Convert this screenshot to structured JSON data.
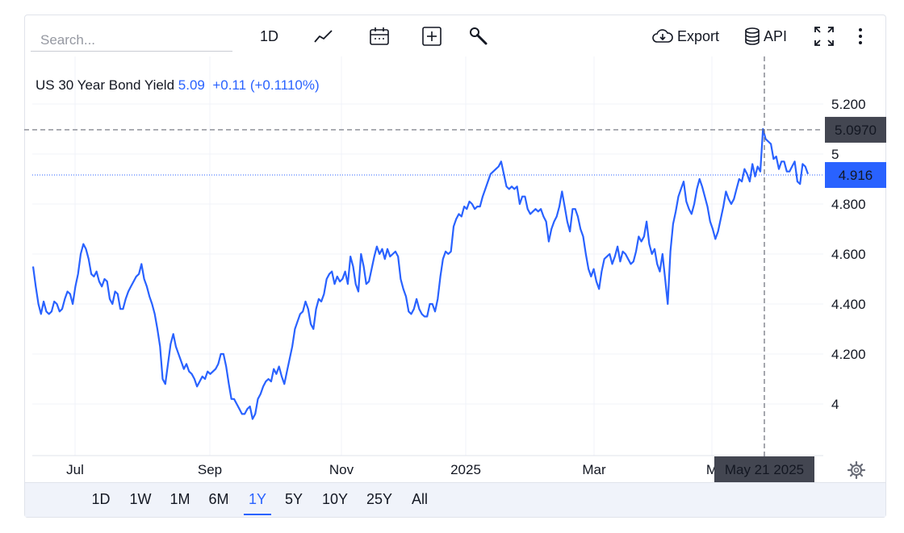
{
  "search": {
    "placeholder": "Search..."
  },
  "toolbar": {
    "interval_label": "1D",
    "chart_type_icon": "line-chart-icon",
    "calendar_icon": "calendar-icon",
    "compare_icon": "plus-square-icon",
    "tools_icon": "wrench-icon",
    "export_label": "Export",
    "api_label": "API",
    "fullscreen_icon": "fullscreen-icon",
    "more_icon": "kebab-menu-icon"
  },
  "legend": {
    "name": "US 30 Year Bond Yield",
    "last": "5.09",
    "change": "+0.11",
    "change_pct": "(+0.1110%)"
  },
  "crosshair": {
    "price_label": "5.0970",
    "date_label": "May 21 2025"
  },
  "last_price_label": "4.916",
  "range_buttons": [
    "1D",
    "1W",
    "1M",
    "6M",
    "1Y",
    "5Y",
    "10Y",
    "25Y",
    "All"
  ],
  "active_range": "1Y",
  "settings_icon": "gear-icon",
  "colors": {
    "line": "#2962ff",
    "label_dark": "#434651",
    "accent": "#2962ff",
    "grid": "#f0f3fa"
  },
  "chart_data": {
    "type": "line",
    "title": "US 30 Year Bond Yield",
    "xlabel": "",
    "ylabel": "",
    "x_tick_labels": [
      "Jul",
      "Sep",
      "Nov",
      "2025",
      "Mar",
      "M"
    ],
    "y_tick_labels": [
      "4",
      "4.200",
      "4.400",
      "4.600",
      "4.800",
      "5",
      "5.200"
    ],
    "y_ticks": [
      4.0,
      4.2,
      4.4,
      4.6,
      4.8,
      5.0,
      5.2
    ],
    "ylim": [
      3.82,
      5.32
    ],
    "grid": true,
    "last_value": 4.916,
    "crosshair_value": 5.097,
    "series": [
      {
        "values": [
          4.55,
          4.47,
          4.4,
          4.36,
          4.41,
          4.37,
          4.36,
          4.37,
          4.41,
          4.4,
          4.37,
          4.38,
          4.42,
          4.45,
          4.44,
          4.4,
          4.47,
          4.52,
          4.6,
          4.64,
          4.62,
          4.58,
          4.52,
          4.51,
          4.53,
          4.49,
          4.47,
          4.5,
          4.49,
          4.42,
          4.4,
          4.45,
          4.44,
          4.38,
          4.38,
          4.42,
          4.45,
          4.47,
          4.49,
          4.51,
          4.52,
          4.56,
          4.5,
          4.47,
          4.43,
          4.4,
          4.36,
          4.3,
          4.23,
          4.1,
          4.08,
          4.16,
          4.24,
          4.28,
          4.23,
          4.2,
          4.17,
          4.14,
          4.16,
          4.13,
          4.12,
          4.1,
          4.07,
          4.09,
          4.11,
          4.1,
          4.13,
          4.12,
          4.13,
          4.14,
          4.16,
          4.2,
          4.2,
          4.15,
          4.08,
          4.02,
          4.02,
          4.0,
          3.98,
          3.96,
          3.96,
          3.98,
          3.99,
          3.94,
          3.96,
          4.02,
          4.04,
          4.07,
          4.09,
          4.1,
          4.09,
          4.14,
          4.12,
          4.15,
          4.11,
          4.08,
          4.13,
          4.18,
          4.23,
          4.3,
          4.33,
          4.36,
          4.37,
          4.41,
          4.38,
          4.32,
          4.3,
          4.38,
          4.42,
          4.41,
          4.44,
          4.5,
          4.52,
          4.53,
          4.48,
          4.51,
          4.49,
          4.5,
          4.53,
          4.48,
          4.59,
          4.55,
          4.48,
          4.45,
          4.6,
          4.55,
          4.48,
          4.49,
          4.54,
          4.59,
          4.63,
          4.6,
          4.62,
          4.58,
          4.62,
          4.59,
          4.6,
          4.61,
          4.59,
          4.5,
          4.46,
          4.43,
          4.37,
          4.36,
          4.38,
          4.42,
          4.38,
          4.36,
          4.35,
          4.35,
          4.4,
          4.4,
          4.37,
          4.42,
          4.51,
          4.58,
          4.61,
          4.6,
          4.61,
          4.71,
          4.74,
          4.76,
          4.75,
          4.79,
          4.78,
          4.81,
          4.8,
          4.78,
          4.79,
          4.79,
          4.83,
          4.86,
          4.89,
          4.92,
          4.93,
          4.94,
          4.95,
          4.97,
          4.92,
          4.87,
          4.86,
          4.87,
          4.86,
          4.87,
          4.8,
          4.83,
          4.83,
          4.78,
          4.76,
          4.77,
          4.78,
          4.77,
          4.78,
          4.75,
          4.73,
          4.65,
          4.7,
          4.73,
          4.75,
          4.79,
          4.85,
          4.79,
          4.73,
          4.69,
          4.78,
          4.78,
          4.75,
          4.7,
          4.67,
          4.6,
          4.54,
          4.51,
          4.54,
          4.49,
          4.46,
          4.53,
          4.58,
          4.59,
          4.6,
          4.56,
          4.59,
          4.63,
          4.57,
          4.61,
          4.6,
          4.58,
          4.56,
          4.57,
          4.61,
          4.67,
          4.65,
          4.67,
          4.73,
          4.64,
          4.6,
          4.62,
          4.56,
          4.53,
          4.6,
          4.5,
          4.4,
          4.61,
          4.72,
          4.77,
          4.83,
          4.86,
          4.89,
          4.81,
          4.78,
          4.76,
          4.8,
          4.86,
          4.9,
          4.87,
          4.83,
          4.79,
          4.73,
          4.7,
          4.66,
          4.69,
          4.74,
          4.79,
          4.85,
          4.82,
          4.8,
          4.82,
          4.86,
          4.9,
          4.89,
          4.94,
          4.92,
          4.89,
          4.96,
          4.91,
          4.95,
          4.93,
          5.1,
          5.06,
          5.05,
          5.04,
          4.98,
          4.99,
          4.94,
          4.97,
          4.97,
          4.93,
          4.93,
          4.95,
          4.97,
          4.89,
          4.88,
          4.96,
          4.95,
          4.92
        ]
      }
    ]
  }
}
